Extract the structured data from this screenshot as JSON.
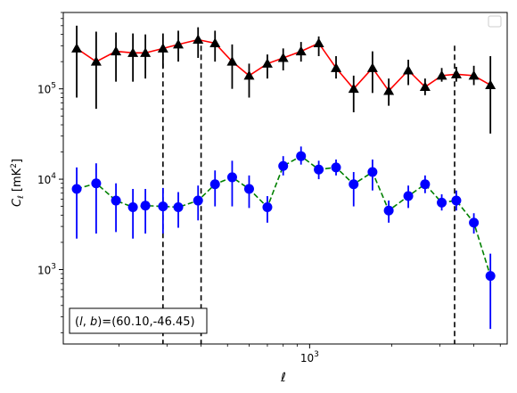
{
  "chart_data": {
    "type": "scatter",
    "title": "",
    "xlabel": "ℓ",
    "ylabel": "C_ℓ [mK²]",
    "xscale": "log",
    "yscale": "log",
    "xlim": [
      125,
      5300
    ],
    "ylim": [
      150,
      700000
    ],
    "xtick_labels": [
      {
        "value": 1000,
        "base": "10",
        "exp": "3"
      }
    ],
    "ytick_labels": [
      {
        "value": 1000,
        "base": "10",
        "exp": "3"
      },
      {
        "value": 10000,
        "base": "10",
        "exp": "4"
      },
      {
        "value": 100000,
        "base": "10",
        "exp": "5"
      }
    ],
    "legend": "top-right",
    "annotation": "(l, b)=(60.10,-46.45)",
    "vlines": [
      {
        "x": 290,
        "y_low": 150,
        "y_high": 300000
      },
      {
        "x": 400,
        "y_low": 150,
        "y_high": 300000
      },
      {
        "x": 3400,
        "y_low": 150,
        "y_high": 300000
      }
    ],
    "series": [
      {
        "marker": "triangle",
        "marker_color": "#000000",
        "line_color": "#ff0000",
        "line_style": "solid",
        "errorbar_color": "#000000",
        "x": [
          140,
          165,
          195,
          225,
          250,
          290,
          330,
          390,
          450,
          520,
          600,
          700,
          800,
          930,
          1080,
          1250,
          1450,
          1700,
          1950,
          2300,
          2650,
          3050,
          3450,
          4000,
          4600
        ],
        "y": [
          280000,
          200000,
          260000,
          250000,
          250000,
          280000,
          310000,
          350000,
          320000,
          200000,
          140000,
          190000,
          220000,
          260000,
          320000,
          170000,
          100000,
          170000,
          95000,
          160000,
          105000,
          140000,
          145000,
          140000,
          110000
        ],
        "y_low": [
          80000,
          60000,
          120000,
          120000,
          130000,
          170000,
          200000,
          220000,
          200000,
          100000,
          80000,
          130000,
          160000,
          200000,
          230000,
          130000,
          55000,
          90000,
          65000,
          110000,
          85000,
          120000,
          120000,
          110000,
          32000
        ],
        "y_high": [
          500000,
          430000,
          420000,
          410000,
          400000,
          410000,
          440000,
          480000,
          440000,
          310000,
          190000,
          240000,
          280000,
          330000,
          380000,
          230000,
          140000,
          260000,
          130000,
          210000,
          130000,
          170000,
          175000,
          180000,
          230000
        ]
      },
      {
        "marker": "circle",
        "marker_color": "#0000ff",
        "line_color": "#008000",
        "line_style": "dashed",
        "errorbar_color": "#0000ff",
        "x": [
          140,
          165,
          195,
          225,
          250,
          290,
          330,
          390,
          450,
          520,
          600,
          700,
          800,
          930,
          1080,
          1250,
          1450,
          1700,
          1950,
          2300,
          2650,
          3050,
          3450,
          4000,
          4600
        ],
        "y": [
          7800,
          9000,
          5800,
          4900,
          5100,
          5000,
          4900,
          5800,
          8800,
          10500,
          7800,
          4900,
          14000,
          18000,
          12800,
          13500,
          8800,
          12000,
          4500,
          6500,
          8800,
          5500,
          5800,
          3300,
          850
        ],
        "y_low": [
          2200,
          2500,
          2600,
          2200,
          2500,
          2500,
          2900,
          3500,
          5000,
          5000,
          4800,
          3300,
          11000,
          14500,
          10000,
          11000,
          5000,
          7500,
          3300,
          4800,
          7000,
          4500,
          4500,
          2500,
          220
        ],
        "y_high": [
          13500,
          15000,
          9000,
          7800,
          7800,
          8000,
          7200,
          8500,
          12500,
          16000,
          11000,
          6500,
          18000,
          23000,
          16000,
          16500,
          12000,
          16500,
          5800,
          8500,
          11000,
          6800,
          7500,
          4200,
          1500
        ]
      }
    ]
  }
}
